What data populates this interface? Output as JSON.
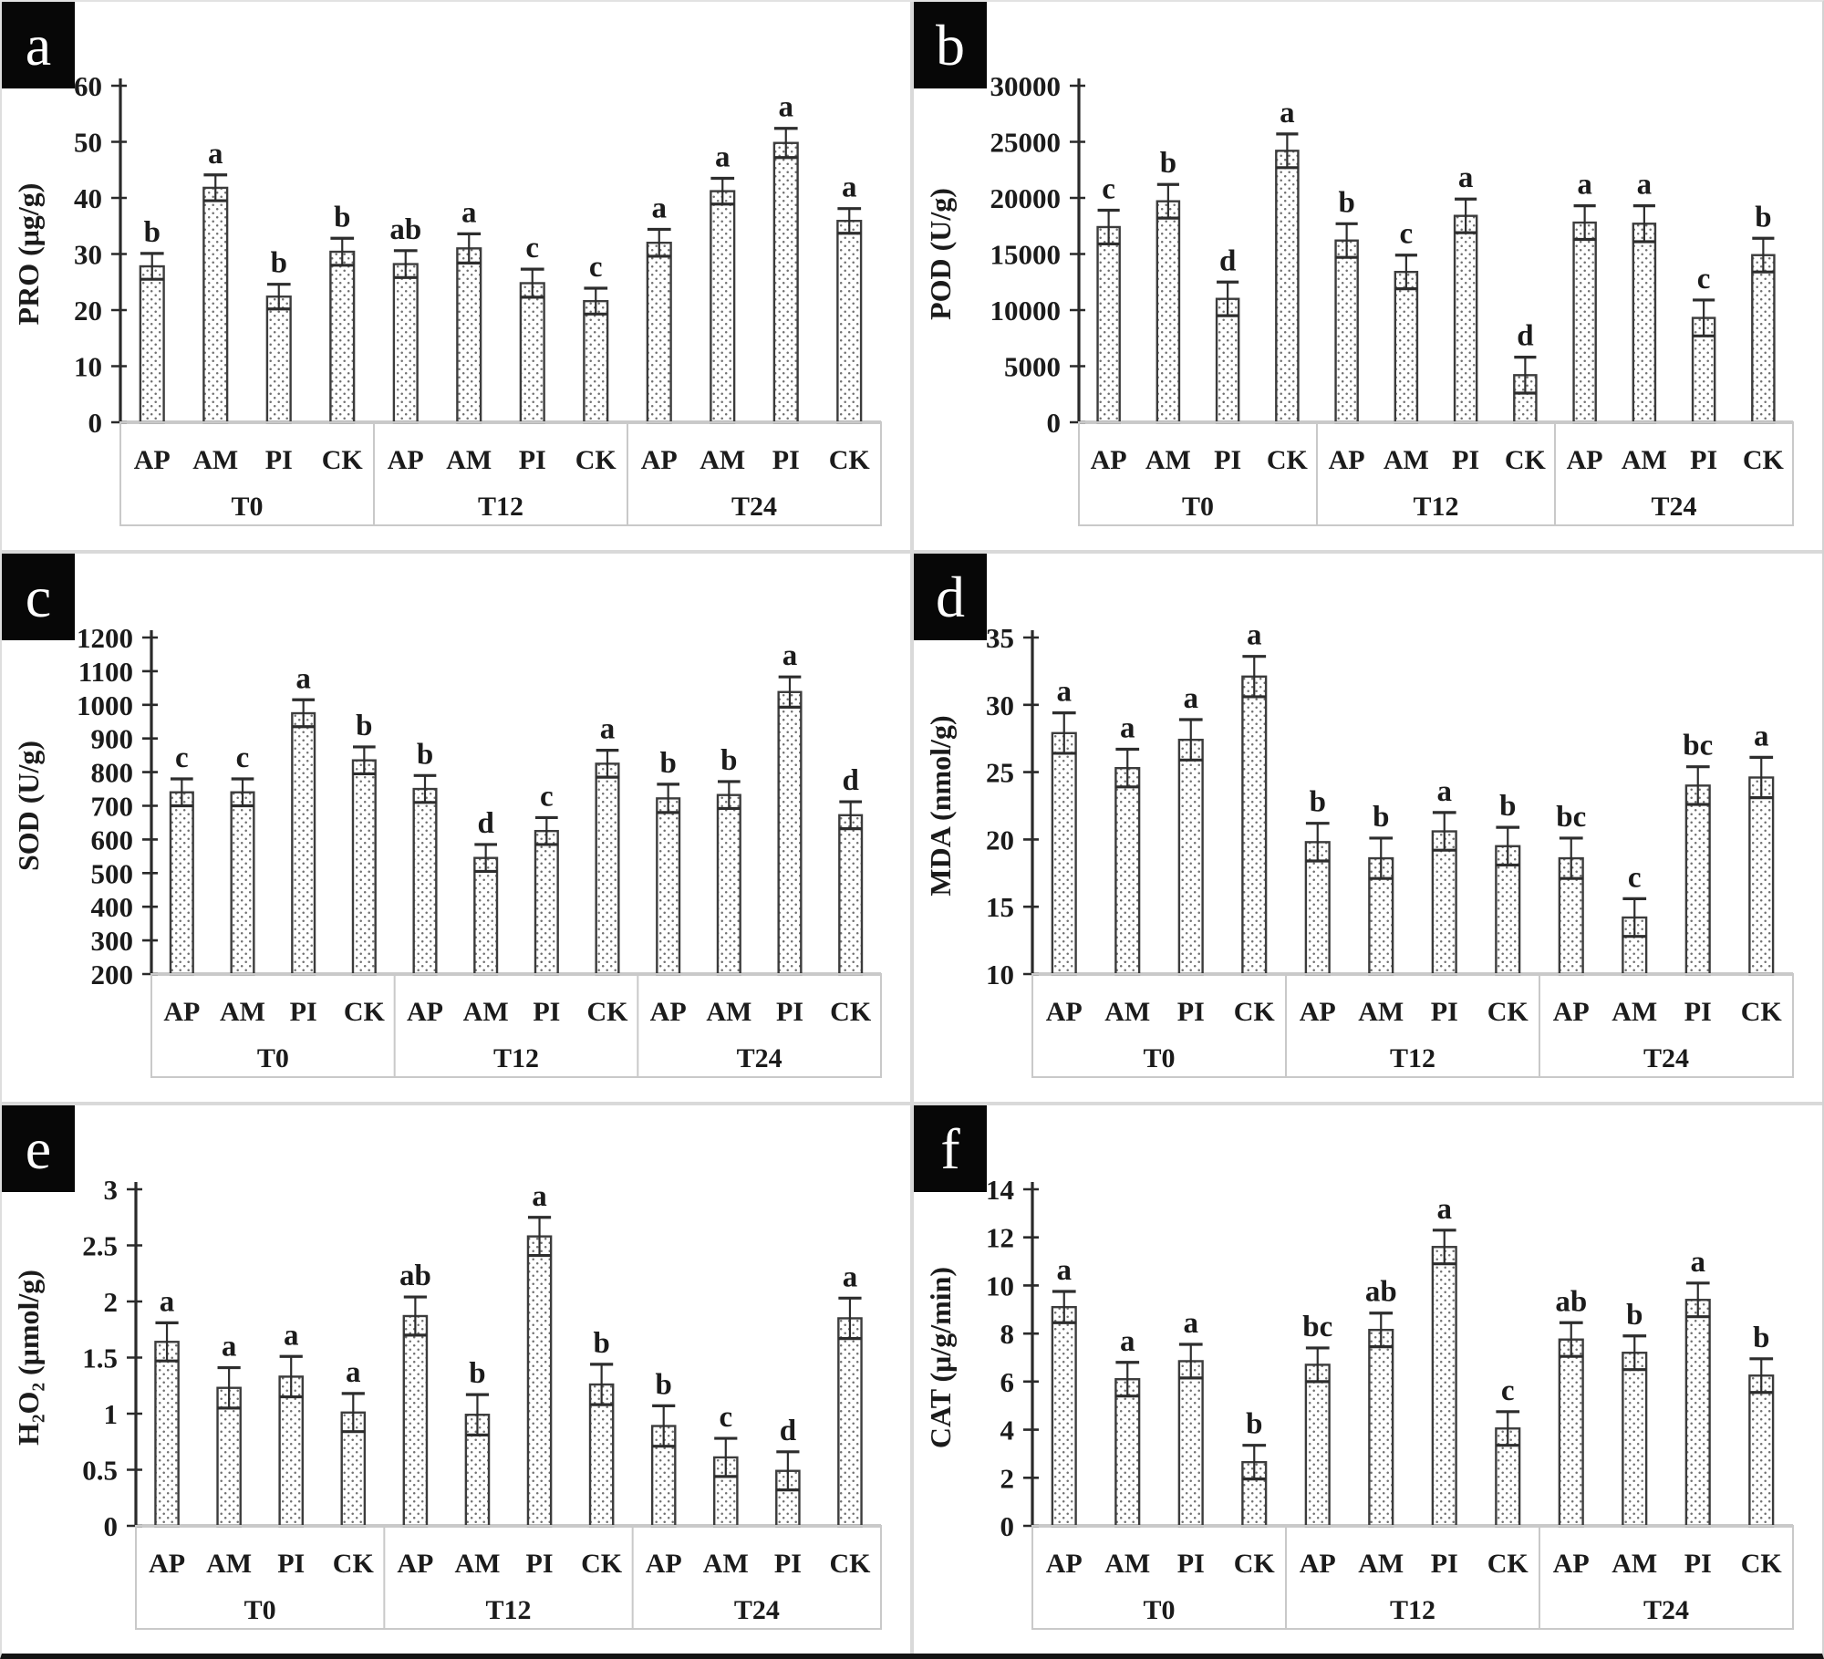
{
  "style": {
    "bar_fill": "#ffffff",
    "bar_dot_color": "#6f6f6f",
    "bar_border_color": "#3c3c3c",
    "axis_color": "#2a2a2a",
    "error_bar_color": "#2d2d2d",
    "text_color": "#1b1b1b",
    "table_border_color": "#c9c9c9",
    "panel_divider_color": "#d9d9d9",
    "panel_letter_bg": "#070707",
    "panel_letter_color": "#ffffff",
    "background": "#ffffff"
  },
  "chart_data": [
    {
      "type": "bar",
      "panel_label": "a",
      "ylabel": "PRO (μg/g)",
      "ylim": [
        0,
        60
      ],
      "yticks": [
        0,
        10,
        20,
        30,
        40,
        50,
        60
      ],
      "ytick_labels": [
        "0",
        "10",
        "20",
        "30",
        "40",
        "50",
        "60"
      ],
      "grid": false,
      "legend": null,
      "time_groups": [
        "T0",
        "T12",
        "T24"
      ],
      "categories": [
        "AP",
        "AM",
        "PI",
        "CK"
      ],
      "bar_order_note": "values listed AP,AM,PI,CK for T0 then T12 then T24",
      "values": [
        27.8,
        41.8,
        22.4,
        30.4,
        28.2,
        31.0,
        24.8,
        21.6,
        32.0,
        41.2,
        49.8,
        35.9
      ],
      "errors": [
        2.3,
        2.3,
        2.2,
        2.4,
        2.4,
        2.6,
        2.5,
        2.3,
        2.4,
        2.3,
        2.6,
        2.2
      ],
      "sig_letters": [
        "b",
        "a",
        "b",
        "b",
        "ab",
        "a",
        "c",
        "c",
        "a",
        "a",
        "a",
        "a"
      ]
    },
    {
      "type": "bar",
      "panel_label": "b",
      "ylabel": "POD (U/g)",
      "ylim": [
        0,
        30000
      ],
      "yticks": [
        0,
        5000,
        10000,
        15000,
        20000,
        25000,
        30000
      ],
      "ytick_labels": [
        "0",
        "5000",
        "10000",
        "15000",
        "20000",
        "25000",
        "30000"
      ],
      "grid": false,
      "legend": null,
      "time_groups": [
        "T0",
        "T12",
        "T24"
      ],
      "categories": [
        "AP",
        "AM",
        "PI",
        "CK"
      ],
      "bar_order_note": "values listed AP,AM,PI,CK for T0 then T12 then T24",
      "values": [
        17400,
        19700,
        11000,
        24200,
        16200,
        13400,
        18400,
        4200,
        17800,
        17700,
        9300,
        14900
      ],
      "errors": [
        1500,
        1500,
        1500,
        1500,
        1500,
        1500,
        1500,
        1600,
        1500,
        1600,
        1600,
        1500
      ],
      "sig_letters": [
        "c",
        "b",
        "d",
        "a",
        "b",
        "c",
        "a",
        "d",
        "a",
        "a",
        "c",
        "b"
      ]
    },
    {
      "type": "bar",
      "panel_label": "c",
      "ylabel": "SOD (U/g)",
      "ylim": [
        200,
        1200
      ],
      "yticks": [
        200,
        300,
        400,
        500,
        600,
        700,
        800,
        900,
        1000,
        1100,
        1200
      ],
      "ytick_labels": [
        "200",
        "300",
        "400",
        "500",
        "600",
        "700",
        "800",
        "900",
        "1000",
        "1100",
        "1200"
      ],
      "grid": false,
      "legend": null,
      "time_groups": [
        "T0",
        "T12",
        "T24"
      ],
      "categories": [
        "AP",
        "AM",
        "PI",
        "CK"
      ],
      "bar_order_note": "values listed AP,AM,PI,CK for T0 then T12 then T24",
      "values": [
        740,
        740,
        975,
        835,
        750,
        545,
        625,
        825,
        722,
        732,
        1038,
        672
      ],
      "errors": [
        40,
        40,
        40,
        40,
        40,
        40,
        40,
        40,
        42,
        40,
        45,
        40
      ],
      "sig_letters": [
        "c",
        "c",
        "a",
        "b",
        "b",
        "d",
        "c",
        "a",
        "b",
        "b",
        "a",
        "d"
      ]
    },
    {
      "type": "bar",
      "panel_label": "d",
      "ylabel": "MDA (nmol/g)",
      "ylim": [
        10,
        35
      ],
      "yticks": [
        10,
        15,
        20,
        25,
        30,
        35
      ],
      "ytick_labels": [
        "10",
        "15",
        "20",
        "25",
        "30",
        "35"
      ],
      "grid": false,
      "legend": null,
      "time_groups": [
        "T0",
        "T12",
        "T24"
      ],
      "categories": [
        "AP",
        "AM",
        "PI",
        "CK"
      ],
      "bar_order_note": "values listed AP,AM,PI,CK for T0 then T12 then T24",
      "values": [
        27.9,
        25.3,
        27.4,
        32.1,
        19.8,
        18.6,
        20.6,
        19.5,
        18.6,
        14.2,
        24.0,
        24.6
      ],
      "errors": [
        1.5,
        1.4,
        1.5,
        1.5,
        1.4,
        1.5,
        1.4,
        1.4,
        1.5,
        1.4,
        1.4,
        1.5
      ],
      "sig_letters": [
        "a",
        "a",
        "a",
        "a",
        "b",
        "b",
        "a",
        "b",
        "bc",
        "c",
        "bc",
        "a"
      ]
    },
    {
      "type": "bar",
      "panel_label": "e",
      "ylabel": "H₂O₂ (μmol/g)",
      "ylim": [
        0,
        3
      ],
      "yticks": [
        0,
        0.5,
        1,
        1.5,
        2,
        2.5,
        3
      ],
      "ytick_labels": [
        "0",
        "0.5",
        "1",
        "1.5",
        "2",
        "2.5",
        "3"
      ],
      "grid": false,
      "legend": null,
      "time_groups": [
        "T0",
        "T12",
        "T24"
      ],
      "categories": [
        "AP",
        "AM",
        "PI",
        "CK"
      ],
      "bar_order_note": "values listed AP,AM,PI,CK for T0 then T12 then T24",
      "values": [
        1.64,
        1.23,
        1.33,
        1.01,
        1.87,
        0.99,
        2.58,
        1.26,
        0.89,
        0.61,
        0.49,
        1.85
      ],
      "errors": [
        0.17,
        0.18,
        0.18,
        0.17,
        0.17,
        0.18,
        0.17,
        0.18,
        0.18,
        0.17,
        0.17,
        0.18
      ],
      "sig_letters": [
        "a",
        "a",
        "a",
        "a",
        "ab",
        "b",
        "a",
        "b",
        "b",
        "c",
        "d",
        "a"
      ]
    },
    {
      "type": "bar",
      "panel_label": "f",
      "ylabel": "CAT (μ/g/min)",
      "ylim": [
        0,
        14
      ],
      "yticks": [
        0,
        2,
        4,
        6,
        8,
        10,
        12,
        14
      ],
      "ytick_labels": [
        "0",
        "2",
        "4",
        "6",
        "8",
        "10",
        "12",
        "14"
      ],
      "grid": false,
      "legend": null,
      "time_groups": [
        "T0",
        "T12",
        "T24"
      ],
      "categories": [
        "AP",
        "AM",
        "PI",
        "CK"
      ],
      "bar_order_note": "values listed AP,AM,PI,CK for T0 then T12 then T24",
      "values": [
        9.1,
        6.1,
        6.85,
        2.65,
        6.7,
        8.15,
        11.6,
        4.05,
        7.75,
        7.2,
        9.4,
        6.25
      ],
      "errors": [
        0.65,
        0.7,
        0.7,
        0.7,
        0.7,
        0.7,
        0.7,
        0.7,
        0.7,
        0.7,
        0.7,
        0.7
      ],
      "sig_letters": [
        "a",
        "a",
        "a",
        "b",
        "bc",
        "ab",
        "a",
        "c",
        "ab",
        "b",
        "a",
        "b"
      ]
    }
  ]
}
